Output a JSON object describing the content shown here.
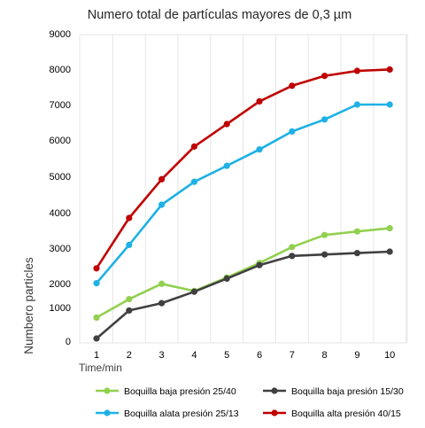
{
  "chart_data": {
    "type": "line",
    "title": "Numero total de partículas mayores de 0,3 µm",
    "xlabel": "Time/min",
    "ylabel": "Numbero particles",
    "x": [
      1,
      2,
      3,
      4,
      5,
      6,
      7,
      8,
      9,
      10
    ],
    "y_ticks": [
      "0",
      "1000",
      "2000",
      "3000",
      "4000",
      "5000",
      "6000",
      "7000",
      "8000",
      "9000"
    ],
    "ylim": [
      0,
      9000
    ],
    "grid": "vertical",
    "legend_position": "bottom",
    "series": [
      {
        "name": "Boquilla baja presión 25/40",
        "color": "#92d050",
        "values": [
          700,
          1350,
          1990,
          1690,
          2170,
          2580,
          3030,
          3370,
          3470,
          3560
        ]
      },
      {
        "name": "Boquilla baja presión 15/30",
        "color": "#404040",
        "values": [
          80,
          910,
          1180,
          1660,
          2140,
          2520,
          2780,
          2820,
          2860,
          2900
        ]
      },
      {
        "name": "Boquilla alata presión 25/13",
        "color": "#1fb1e5",
        "values": [
          2010,
          3090,
          4220,
          4850,
          5290,
          5740,
          6240,
          6580,
          7000,
          7000
        ]
      },
      {
        "name": "Boquilla alta presión 40/15",
        "color": "#c00000",
        "values": [
          2430,
          3850,
          4920,
          5820,
          6450,
          7090,
          7530,
          7810,
          7950,
          7990
        ]
      }
    ]
  }
}
